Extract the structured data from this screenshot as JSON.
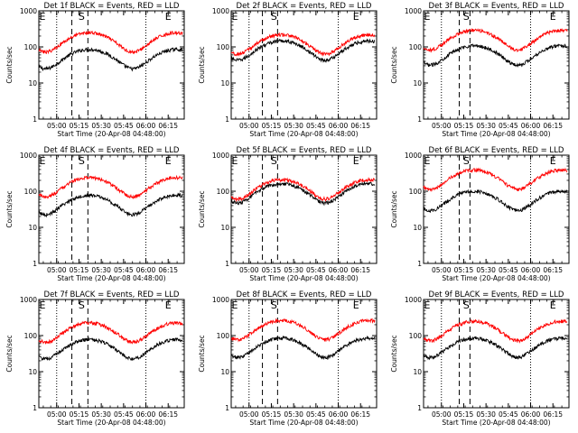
{
  "chart_data": [
    {
      "type": "line",
      "title": "Det 1f BLACK = Events, RED = LLD",
      "xlabel": "Start Time (20-Apr-08 04:48:00)",
      "ylabel": "Counts/sec",
      "yscale": "log",
      "ylim": [
        1,
        1000
      ],
      "ytick_labels": [
        "1",
        "10",
        "100",
        "1000"
      ],
      "xtick_labels": [
        "05:00",
        "05:15",
        "05:30",
        "05:45",
        "06:00",
        "06:15"
      ],
      "x_hours": [
        5.0,
        5.25,
        5.5,
        5.75,
        6.0,
        6.25
      ],
      "markers": [
        {
          "label": "E",
          "x": 4.83
        },
        {
          "label": "S",
          "x": 5.28
        },
        {
          "label": "E",
          "x": 6.25
        }
      ],
      "dotted_x": [
        5.0,
        6.0
      ],
      "dashed_x": [
        5.17,
        5.35
      ],
      "events_base": 55,
      "lld_base": 160,
      "series": [
        {
          "color": "#000000"
        },
        {
          "color": "#ff0000"
        }
      ]
    },
    {
      "type": "line",
      "title": "Det 2f BLACK = Events, RED = LLD",
      "xlabel": "Start Time (20-Apr-08 04:48:00)",
      "ylabel": "Counts/sec",
      "yscale": "log",
      "ylim": [
        1,
        1000
      ],
      "ytick_labels": [
        "1",
        "10",
        "100",
        "1000"
      ],
      "xtick_labels": [
        "05:00",
        "05:15",
        "05:30",
        "05:45",
        "06:00",
        "06:15"
      ],
      "x_hours": [
        5.0,
        5.25,
        5.5,
        5.75,
        6.0,
        6.25
      ],
      "markers": [
        {
          "label": "E",
          "x": 4.83
        },
        {
          "label": "S",
          "x": 5.28
        },
        {
          "label": "E",
          "x": 6.2
        }
      ],
      "dotted_x": [
        5.0,
        6.0
      ],
      "dashed_x": [
        5.15,
        5.32
      ],
      "events_base": 95,
      "lld_base": 140,
      "series": [
        {
          "color": "#000000"
        },
        {
          "color": "#ff0000"
        }
      ]
    },
    {
      "type": "line",
      "title": "Det 3f BLACK = Events, RED = LLD",
      "xlabel": "Start Time (20-Apr-08 04:48:00)",
      "ylabel": "Counts/sec",
      "yscale": "log",
      "ylim": [
        1,
        1000
      ],
      "ytick_labels": [
        "1",
        "10",
        "100",
        "1000"
      ],
      "xtick_labels": [
        "05:00",
        "05:15",
        "05:30",
        "05:45",
        "06:00",
        "06:15"
      ],
      "x_hours": [
        5.0,
        5.25,
        5.5,
        5.75,
        6.0,
        6.25
      ],
      "markers": [
        {
          "label": "E",
          "x": 4.83
        },
        {
          "label": "S",
          "x": 5.28
        },
        {
          "label": "E",
          "x": 6.25
        }
      ],
      "dotted_x": [
        5.0,
        6.0
      ],
      "dashed_x": [
        5.2,
        5.32
      ],
      "events_base": 70,
      "lld_base": 185,
      "series": [
        {
          "color": "#000000"
        },
        {
          "color": "#ff0000"
        }
      ]
    },
    {
      "type": "line",
      "title": "Det 4f BLACK = Events, RED = LLD",
      "xlabel": "Start Time (20-Apr-08 04:48:00)",
      "ylabel": "Counts/sec",
      "yscale": "log",
      "ylim": [
        1,
        1000
      ],
      "ytick_labels": [
        "1",
        "10",
        "100",
        "1000"
      ],
      "xtick_labels": [
        "05:00",
        "05:15",
        "05:30",
        "05:45",
        "06:00",
        "06:15"
      ],
      "x_hours": [
        5.0,
        5.25,
        5.5,
        5.75,
        6.0,
        6.25
      ],
      "markers": [
        {
          "label": "E",
          "x": 4.83
        },
        {
          "label": "S",
          "x": 5.28
        },
        {
          "label": "E",
          "x": 6.25
        }
      ],
      "dotted_x": [
        5.0,
        6.0
      ],
      "dashed_x": [
        5.17,
        5.35
      ],
      "events_base": 50,
      "lld_base": 155,
      "series": [
        {
          "color": "#000000"
        },
        {
          "color": "#ff0000"
        }
      ]
    },
    {
      "type": "line",
      "title": "Det 5f BLACK = Events, RED = LLD",
      "xlabel": "Start Time (20-Apr-08 04:48:00)",
      "ylabel": "Counts/sec",
      "yscale": "log",
      "ylim": [
        1,
        1000
      ],
      "ytick_labels": [
        "1",
        "10",
        "100",
        "1000"
      ],
      "xtick_labels": [
        "05:00",
        "05:15",
        "05:30",
        "05:45",
        "06:00",
        "06:15"
      ],
      "x_hours": [
        5.0,
        5.25,
        5.5,
        5.75,
        6.0,
        6.25
      ],
      "markers": [
        {
          "label": "E",
          "x": 4.83
        },
        {
          "label": "S",
          "x": 5.28
        },
        {
          "label": "E",
          "x": 6.2
        }
      ],
      "dotted_x": [
        5.0,
        6.0
      ],
      "dashed_x": [
        5.15,
        5.32
      ],
      "events_base": 105,
      "lld_base": 135,
      "series": [
        {
          "color": "#000000"
        },
        {
          "color": "#ff0000"
        }
      ]
    },
    {
      "type": "line",
      "title": "Det 6f BLACK = Events, RED = LLD",
      "xlabel": "Start Time (20-Apr-08 04:48:00)",
      "ylabel": "Counts/sec",
      "yscale": "log",
      "ylim": [
        1,
        1000
      ],
      "ytick_labels": [
        "1",
        "10",
        "100",
        "1000"
      ],
      "xtick_labels": [
        "05:00",
        "05:15",
        "05:30",
        "05:45",
        "06:00",
        "06:15"
      ],
      "x_hours": [
        5.0,
        5.25,
        5.5,
        5.75,
        6.0,
        6.25
      ],
      "markers": [
        {
          "label": "E",
          "x": 4.83
        },
        {
          "label": "S",
          "x": 5.28
        },
        {
          "label": "E",
          "x": 6.25
        }
      ],
      "dotted_x": [
        5.0,
        6.0
      ],
      "dashed_x": [
        5.2,
        5.32
      ],
      "events_base": 65,
      "lld_base": 250,
      "series": [
        {
          "color": "#000000"
        },
        {
          "color": "#ff0000"
        }
      ]
    },
    {
      "type": "line",
      "title": "Det 7f BLACK = Events, RED = LLD",
      "xlabel": "Start Time (20-Apr-08 04:48:00)",
      "ylabel": "Counts/sec",
      "yscale": "log",
      "ylim": [
        1,
        1000
      ],
      "ytick_labels": [
        "1",
        "10",
        "100",
        "1000"
      ],
      "xtick_labels": [
        "05:00",
        "05:15",
        "05:30",
        "05:45",
        "06:00",
        "06:15"
      ],
      "x_hours": [
        5.0,
        5.25,
        5.5,
        5.75,
        6.0,
        6.25
      ],
      "markers": [
        {
          "label": "E",
          "x": 4.83
        },
        {
          "label": "S",
          "x": 5.28
        },
        {
          "label": "E",
          "x": 6.25
        }
      ],
      "dotted_x": [
        5.0,
        6.0
      ],
      "dashed_x": [
        5.17,
        5.35
      ],
      "events_base": 50,
      "lld_base": 145,
      "series": [
        {
          "color": "#000000"
        },
        {
          "color": "#ff0000"
        }
      ]
    },
    {
      "type": "line",
      "title": "Det 8f BLACK = Events, RED = LLD",
      "xlabel": "Start Time (20-Apr-08 04:48:00)",
      "ylabel": "Counts/sec",
      "yscale": "log",
      "ylim": [
        1,
        1000
      ],
      "ytick_labels": [
        "1",
        "10",
        "100",
        "1000"
      ],
      "xtick_labels": [
        "05:00",
        "05:15",
        "05:30",
        "05:45",
        "06:00",
        "06:15"
      ],
      "x_hours": [
        5.0,
        5.25,
        5.5,
        5.75,
        6.0,
        6.25
      ],
      "markers": [
        {
          "label": "E",
          "x": 4.83
        },
        {
          "label": "S",
          "x": 5.28
        },
        {
          "label": "E",
          "x": 6.2
        }
      ],
      "dotted_x": [
        5.0,
        6.0
      ],
      "dashed_x": [
        5.15,
        5.32
      ],
      "events_base": 55,
      "lld_base": 170,
      "series": [
        {
          "color": "#000000"
        },
        {
          "color": "#ff0000"
        }
      ]
    },
    {
      "type": "line",
      "title": "Det 9f BLACK = Events, RED = LLD",
      "xlabel": "Start Time (20-Apr-08 04:48:00)",
      "ylabel": "Counts/sec",
      "yscale": "log",
      "ylim": [
        1,
        1000
      ],
      "ytick_labels": [
        "1",
        "10",
        "100",
        "1000"
      ],
      "xtick_labels": [
        "05:00",
        "05:15",
        "05:30",
        "05:45",
        "06:00",
        "06:15"
      ],
      "x_hours": [
        5.0,
        5.25,
        5.5,
        5.75,
        6.0,
        6.25
      ],
      "markers": [
        {
          "label": "E",
          "x": 4.83
        },
        {
          "label": "S",
          "x": 5.28
        },
        {
          "label": "E",
          "x": 6.25
        }
      ],
      "dotted_x": [
        5.0,
        6.0
      ],
      "dashed_x": [
        5.2,
        5.32
      ],
      "events_base": 55,
      "lld_base": 160,
      "series": [
        {
          "color": "#000000"
        },
        {
          "color": "#ff0000"
        }
      ]
    }
  ]
}
